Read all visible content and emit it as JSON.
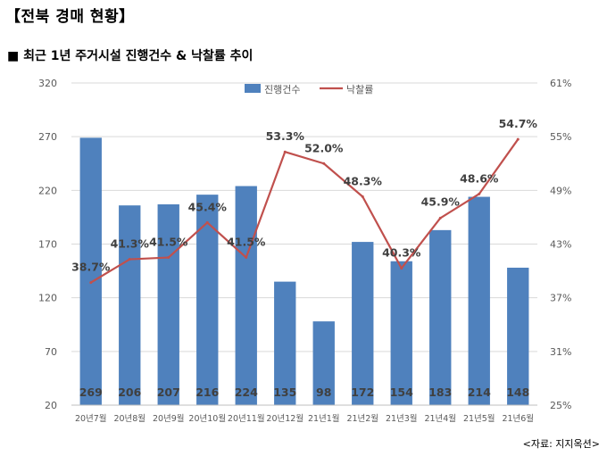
{
  "page": {
    "title": "【전북 경매 현황】",
    "source": "<자료: 지지옥션>"
  },
  "chart_data": {
    "type": "bar",
    "title": "■ 최근 1년 주거시설 진행건수 & 낙찰률 추이",
    "categories": [
      "20년7월",
      "20년8월",
      "20년9월",
      "20년10월",
      "20년11월",
      "20년12월",
      "21년1월",
      "21년2월",
      "21년3월",
      "21년4월",
      "21년5월",
      "21년6월"
    ],
    "series": [
      {
        "name": "진행건수",
        "type": "bar",
        "axis": "left",
        "color": "#4f81bd",
        "values": [
          269,
          206,
          207,
          216,
          224,
          135,
          98,
          172,
          154,
          183,
          214,
          148
        ],
        "labels": [
          "269",
          "206",
          "207",
          "216",
          "224",
          "135",
          "98",
          "172",
          "154",
          "183",
          "214",
          "148"
        ]
      },
      {
        "name": "낙찰률",
        "type": "line",
        "axis": "right",
        "color": "#c0504d",
        "values": [
          38.7,
          41.3,
          41.5,
          45.4,
          41.5,
          53.3,
          52.0,
          48.3,
          40.3,
          45.9,
          48.6,
          54.7
        ],
        "labels": [
          "38.7%",
          "41.3%",
          "41.5%",
          "45.4%",
          "41.5%",
          "53.3%",
          "52.0%",
          "48.3%",
          "40.3%",
          "45.9%",
          "48.6%",
          "54.7%"
        ]
      }
    ],
    "left_axis": {
      "min": 20,
      "max": 320,
      "ticks": [
        20,
        70,
        120,
        170,
        220,
        270,
        320
      ],
      "tick_labels": [
        "20",
        "70",
        "120",
        "170",
        "220",
        "270",
        "320"
      ]
    },
    "right_axis": {
      "min": 25,
      "max": 61,
      "ticks": [
        25,
        31,
        37,
        43,
        49,
        55,
        61
      ],
      "tick_labels": [
        "25%",
        "31%",
        "37%",
        "43%",
        "49%",
        "55%",
        "61%"
      ]
    },
    "grid": true,
    "legend_position": "top-center"
  }
}
